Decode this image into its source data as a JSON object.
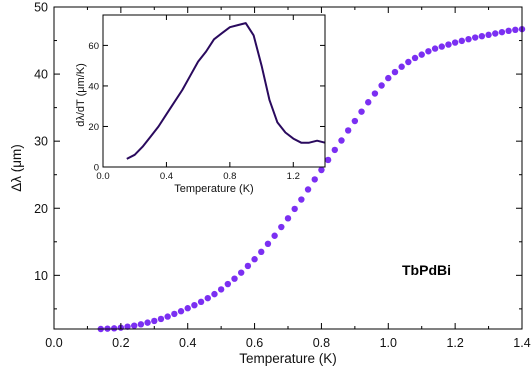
{
  "chart_data": [
    {
      "type": "scatter",
      "xlabel": "Temperature (K)",
      "ylabel": "Δλ (μm)",
      "xlim": [
        0.0,
        1.4
      ],
      "ylim": [
        2,
        50
      ],
      "x_ticks": [
        0.0,
        0.2,
        0.4,
        0.6,
        0.8,
        1.0,
        1.2,
        1.4
      ],
      "x_tick_labels": [
        "0.0",
        "0.2",
        "0.4",
        "0.6",
        "0.8",
        "1.0",
        "1.2",
        "1.4"
      ],
      "y_ticks": [
        10,
        20,
        30,
        40,
        50
      ],
      "y_tick_labels": [
        "10",
        "20",
        "30",
        "40",
        "50"
      ],
      "annotation": "TbPdBi",
      "grid": false,
      "marker_color": "#7b2ff2",
      "series": [
        {
          "x": [
            0.14,
            0.16,
            0.18,
            0.2,
            0.22,
            0.24,
            0.26,
            0.28,
            0.3,
            0.32,
            0.34,
            0.36,
            0.38,
            0.4,
            0.42,
            0.44,
            0.46,
            0.48,
            0.5,
            0.52,
            0.54,
            0.56,
            0.58,
            0.6,
            0.62,
            0.64,
            0.66,
            0.68,
            0.7,
            0.72,
            0.74,
            0.76,
            0.78,
            0.8,
            0.82,
            0.84,
            0.86,
            0.88,
            0.9,
            0.92,
            0.94,
            0.96,
            0.98,
            1.0,
            1.02,
            1.04,
            1.06,
            1.08,
            1.1,
            1.12,
            1.14,
            1.16,
            1.18,
            1.2,
            1.22,
            1.24,
            1.26,
            1.28,
            1.3,
            1.32,
            1.34,
            1.36,
            1.38,
            1.4
          ],
          "y": [
            2.0,
            2.05,
            2.1,
            2.2,
            2.35,
            2.5,
            2.7,
            2.95,
            3.2,
            3.5,
            3.85,
            4.25,
            4.65,
            5.1,
            5.55,
            6.05,
            6.6,
            7.2,
            7.9,
            8.7,
            9.5,
            10.4,
            11.4,
            12.4,
            13.5,
            14.7,
            15.9,
            17.2,
            18.5,
            19.9,
            21.3,
            22.8,
            24.3,
            25.7,
            27.2,
            28.7,
            30.1,
            31.6,
            33.0,
            34.4,
            35.8,
            37.1,
            38.3,
            39.4,
            40.3,
            41.1,
            41.8,
            42.4,
            42.9,
            43.4,
            43.8,
            44.1,
            44.4,
            44.7,
            44.95,
            45.2,
            45.45,
            45.65,
            45.85,
            46.05,
            46.25,
            46.45,
            46.6,
            46.7
          ]
        }
      ]
    },
    {
      "type": "line",
      "xlabel": "Temperature (K)",
      "ylabel": "dλ/dT (μm/K)",
      "xlim": [
        0.0,
        1.4
      ],
      "ylim": [
        0,
        75
      ],
      "x_ticks": [
        0.0,
        0.4,
        0.8,
        1.2
      ],
      "x_tick_labels": [
        "0.0",
        "0.4",
        "0.8",
        "1.2"
      ],
      "y_ticks": [
        0,
        20,
        40,
        60
      ],
      "y_tick_labels": [
        "0",
        "20",
        "40",
        "60"
      ],
      "grid": false,
      "line_color": "#2a0a5e",
      "series": [
        {
          "x": [
            0.15,
            0.2,
            0.25,
            0.3,
            0.35,
            0.4,
            0.45,
            0.5,
            0.55,
            0.6,
            0.65,
            0.7,
            0.75,
            0.8,
            0.85,
            0.9,
            0.95,
            1.0,
            1.05,
            1.1,
            1.15,
            1.2,
            1.25,
            1.3,
            1.35,
            1.4
          ],
          "y": [
            4,
            6,
            10,
            15,
            20,
            26,
            32,
            38,
            45,
            52,
            57,
            63,
            66,
            69,
            70,
            71,
            65,
            50,
            33,
            22,
            17,
            14,
            12,
            12,
            13,
            12
          ]
        }
      ]
    }
  ]
}
